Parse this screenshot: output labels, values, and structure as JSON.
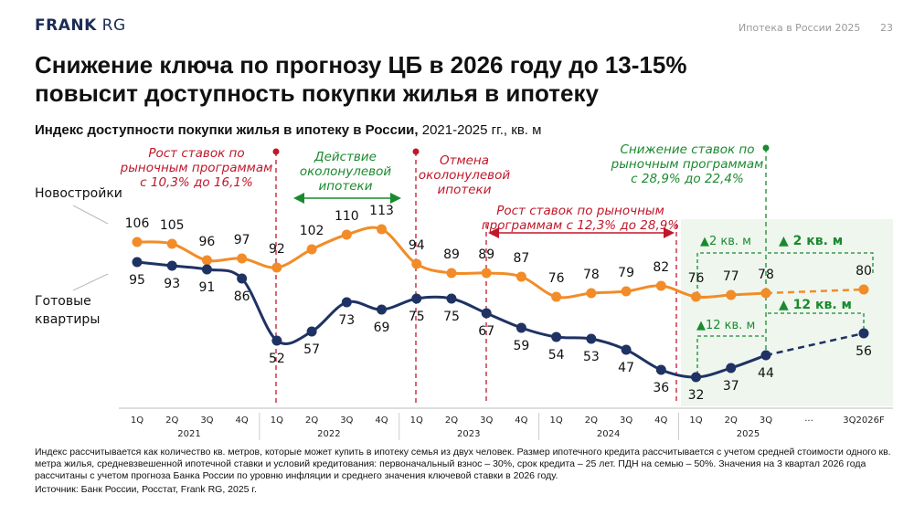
{
  "header": {
    "logo": "FRANK RG",
    "logo_bold": "FRANK",
    "logo_light": " RG",
    "report": "Ипотека в России 2025",
    "page": "23"
  },
  "title": "Снижение ключа по прогнозу ЦБ в 2026 году до 13-15% повысит доступность покупки жилья в ипотеку",
  "subtitle_bold": "Индекс доступности покупки жилья в ипотеку в России,",
  "subtitle_rest": " 2021-2025 гг., кв. м",
  "chart_data": {
    "type": "line",
    "x": [
      "1Q 2021",
      "2Q 2021",
      "3Q 2021",
      "4Q 2021",
      "1Q 2022",
      "2Q 2022",
      "3Q 2022",
      "4Q 2022",
      "1Q 2023",
      "2Q 2023",
      "3Q 2023",
      "4Q 2023",
      "1Q 2024",
      "2Q 2024",
      "3Q 2024",
      "4Q 2024",
      "1Q 2025",
      "2Q 2025",
      "3Q 2025",
      "3Q2026F"
    ],
    "quarter_labels": [
      "1Q",
      "2Q",
      "3Q",
      "4Q",
      "1Q",
      "2Q",
      "3Q",
      "4Q",
      "1Q",
      "2Q",
      "3Q",
      "4Q",
      "1Q",
      "2Q",
      "3Q",
      "4Q",
      "1Q",
      "2Q",
      "3Q"
    ],
    "ellipsis": "...",
    "forecast_label": "3Q2026F",
    "years": [
      "2021",
      "2022",
      "2023",
      "2024",
      "2025"
    ],
    "series": [
      {
        "name": "Новостройки",
        "color": "#f28c28",
        "values": [
          106,
          105,
          96,
          97,
          92,
          102,
          110,
          113,
          94,
          89,
          89,
          87,
          76,
          78,
          79,
          82,
          76,
          77,
          78,
          80
        ]
      },
      {
        "name": "Готовые квартиры",
        "color": "#1f3264",
        "values": [
          95,
          93,
          91,
          86,
          52,
          57,
          73,
          69,
          75,
          75,
          67,
          59,
          54,
          53,
          47,
          36,
          32,
          37,
          44,
          56
        ]
      }
    ],
    "forecast_dashed": true,
    "annotations": {
      "a1": [
        "Рост ставок по",
        "рыночным программам",
        "с 10,3% до 16,1%"
      ],
      "a2": [
        "Действие",
        "околонулевой",
        "ипотеки"
      ],
      "a3": [
        "Отмена",
        "околонулевой",
        "ипотеки"
      ],
      "a4": [
        "Рост ставок по рыночным",
        "программам с 12,3% до 28,9%"
      ],
      "a5": [
        "Снижение ставок по",
        "рыночным программам",
        "с 28,9% до 22,4%"
      ],
      "d1": "▲2 кв. м",
      "d2": "▲ 2 кв. м",
      "d3": "▲12 кв. м",
      "d4": "▲ 12 кв. м"
    },
    "colors": {
      "red": "#c0182a",
      "green": "#1a8a2e",
      "highlight": "#eef6ee"
    }
  },
  "series_label_1": "Новостройки",
  "series_label_2a": "Готовые",
  "series_label_2b": "квартиры",
  "note": "Индекс рассчитывается как количество кв. метров, которые может купить в ипотеку семья из двух человек. Размер ипотечного кредита рассчитывается с учетом средней стоимости одного кв. метра жилья, средневзвешенной ипотечной ставки и условий кредитования: первоначальный взнос – 30%, срок кредита – 25 лет. ПДН на семью – 50%. Значения на 3 квартал 2026 года рассчитаны с учетом прогноза Банка России по уровню инфляции и среднего значения ключевой ставки в 2026 году.",
  "source": "Источник: Банк России, Росстат, Frank RG, 2025 г."
}
